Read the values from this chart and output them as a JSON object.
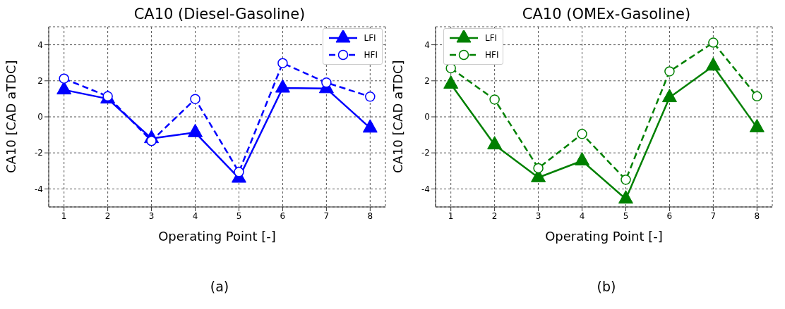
{
  "chart_data": [
    {
      "type": "line",
      "title": "CA10 (Diesel-Gasoline)",
      "xlabel": "Operating Point [-]",
      "ylabel": "CA10 [CAD aTDC]",
      "annotations": [
        "(a)"
      ],
      "x": [
        1,
        2,
        3,
        4,
        5,
        6,
        7,
        8
      ],
      "xlim": [
        0.65,
        8.35
      ],
      "xticks": [
        1,
        2,
        3,
        4,
        5,
        6,
        7,
        8
      ],
      "ylim": [
        -5,
        5
      ],
      "yticks": [
        -4,
        -2,
        0,
        2,
        4
      ],
      "grid": true,
      "legend": "top right",
      "series": [
        {
          "name": "LFI",
          "color": "#0000ff",
          "marker": "triangle",
          "line_style": "solid",
          "values": [
            1.5,
            1.0,
            -1.2,
            -0.87,
            -3.4,
            1.6,
            1.57,
            -0.62
          ]
        },
        {
          "name": "HFI",
          "color": "#0000ff",
          "marker": "circle",
          "line_style": "dashed",
          "values": [
            2.12,
            1.14,
            -1.34,
            0.99,
            -3.06,
            2.98,
            1.9,
            1.12
          ]
        }
      ]
    },
    {
      "type": "line",
      "title": "CA10 (OMEx-Gasoline)",
      "xlabel": "Operating Point [-]",
      "ylabel": "CA10 [CAD aTDC]",
      "annotations": [
        "(b)"
      ],
      "x": [
        1,
        2,
        3,
        4,
        5,
        6,
        7,
        8
      ],
      "xlim": [
        0.65,
        8.35
      ],
      "xticks": [
        1,
        2,
        3,
        4,
        5,
        6,
        7,
        8
      ],
      "ylim": [
        -5,
        5
      ],
      "yticks": [
        -4,
        -2,
        0,
        2,
        4
      ],
      "grid": true,
      "legend": "top left",
      "series": [
        {
          "name": "LFI",
          "color": "#008000",
          "marker": "triangle",
          "line_style": "solid",
          "values": [
            1.82,
            -1.55,
            -3.37,
            -2.44,
            -4.56,
            1.07,
            2.82,
            -0.6
          ]
        },
        {
          "name": "HFI",
          "color": "#008000",
          "marker": "circle",
          "line_style": "dashed",
          "values": [
            2.7,
            0.96,
            -2.85,
            -0.95,
            -3.49,
            2.52,
            4.12,
            1.14
          ]
        }
      ]
    }
  ]
}
